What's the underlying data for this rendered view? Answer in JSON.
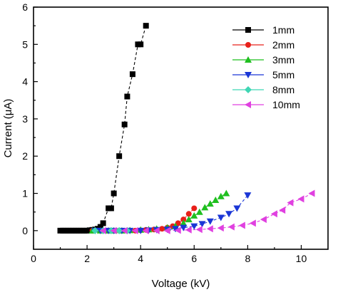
{
  "chart_data": {
    "type": "line",
    "xlabel": "Voltage (kV)",
    "ylabel": "Current (μA)",
    "xlim": [
      0,
      11
    ],
    "ylim": [
      -0.5,
      6
    ],
    "xticks": [
      0,
      2,
      4,
      6,
      8,
      10
    ],
    "yticks": [
      0,
      1,
      2,
      3,
      4,
      5,
      6
    ],
    "grid": false,
    "legend_position": "top-right",
    "series": [
      {
        "name": "1mm",
        "color": "#000000",
        "marker": "square",
        "x": [
          1.0,
          1.1,
          1.2,
          1.3,
          1.4,
          1.5,
          1.6,
          1.7,
          1.8,
          1.9,
          2.0,
          2.1,
          2.2,
          2.3,
          2.4,
          2.5,
          2.6,
          2.8,
          2.9,
          3.0,
          3.2,
          3.4,
          3.5,
          3.7,
          3.9,
          4.0,
          4.2
        ],
        "y": [
          0,
          0,
          0,
          0,
          0,
          0,
          0,
          0,
          0,
          0,
          0,
          0.01,
          0.02,
          0.03,
          0.05,
          0.1,
          0.2,
          0.6,
          0.6,
          1.0,
          2.0,
          2.85,
          3.6,
          4.2,
          5.0,
          5.0,
          5.5
        ]
      },
      {
        "name": "2mm",
        "color": "#e8201a",
        "marker": "circle",
        "x": [
          2.2,
          2.5,
          2.8,
          3.0,
          3.2,
          3.5,
          3.8,
          4.0,
          4.2,
          4.5,
          4.8,
          5.0,
          5.2,
          5.4,
          5.6,
          5.8,
          6.0
        ],
        "y": [
          0,
          0,
          0,
          0,
          0,
          0,
          0,
          0.01,
          0.02,
          0.03,
          0.05,
          0.08,
          0.12,
          0.2,
          0.3,
          0.45,
          0.6
        ]
      },
      {
        "name": "3mm",
        "color": "#1fbf1f",
        "marker": "triangle-up",
        "x": [
          2.2,
          2.5,
          2.8,
          3.0,
          3.3,
          3.6,
          4.0,
          4.3,
          4.6,
          5.0,
          5.3,
          5.6,
          5.8,
          6.0,
          6.2,
          6.4,
          6.6,
          6.8,
          7.0,
          7.2
        ],
        "y": [
          0,
          0,
          0,
          0,
          0,
          0.01,
          0.02,
          0.03,
          0.05,
          0.08,
          0.12,
          0.2,
          0.3,
          0.4,
          0.5,
          0.62,
          0.72,
          0.82,
          0.92,
          1.0
        ]
      },
      {
        "name": "5mm",
        "color": "#1a36d6",
        "marker": "triangle-down",
        "x": [
          2.3,
          2.5,
          2.8,
          3.0,
          3.3,
          3.6,
          4.0,
          4.3,
          4.6,
          5.0,
          5.3,
          5.6,
          6.0,
          6.3,
          6.6,
          7.0,
          7.3,
          7.6,
          8.0
        ],
        "y": [
          0,
          0,
          0,
          0,
          0,
          0,
          0,
          0.01,
          0.02,
          0.03,
          0.05,
          0.08,
          0.12,
          0.18,
          0.25,
          0.35,
          0.45,
          0.6,
          0.95
        ]
      },
      {
        "name": "8mm",
        "color": "#3fd6b4",
        "marker": "diamond",
        "x": [
          2.3,
          2.6,
          2.9,
          3.2,
          3.5
        ],
        "y": [
          0,
          0,
          0,
          0,
          0
        ]
      },
      {
        "name": "10mm",
        "color": "#e040e0",
        "marker": "triangle-left",
        "x": [
          2.6,
          3.0,
          3.4,
          3.8,
          4.2,
          4.6,
          5.0,
          5.4,
          5.8,
          6.2,
          6.6,
          7.0,
          7.4,
          7.8,
          8.2,
          8.6,
          9.0,
          9.3,
          9.6,
          10.0,
          10.4
        ],
        "y": [
          0,
          0,
          0,
          0,
          0,
          0,
          0,
          0.01,
          0.02,
          0.03,
          0.05,
          0.07,
          0.1,
          0.14,
          0.2,
          0.3,
          0.45,
          0.55,
          0.75,
          0.85,
          1.0
        ]
      }
    ]
  }
}
